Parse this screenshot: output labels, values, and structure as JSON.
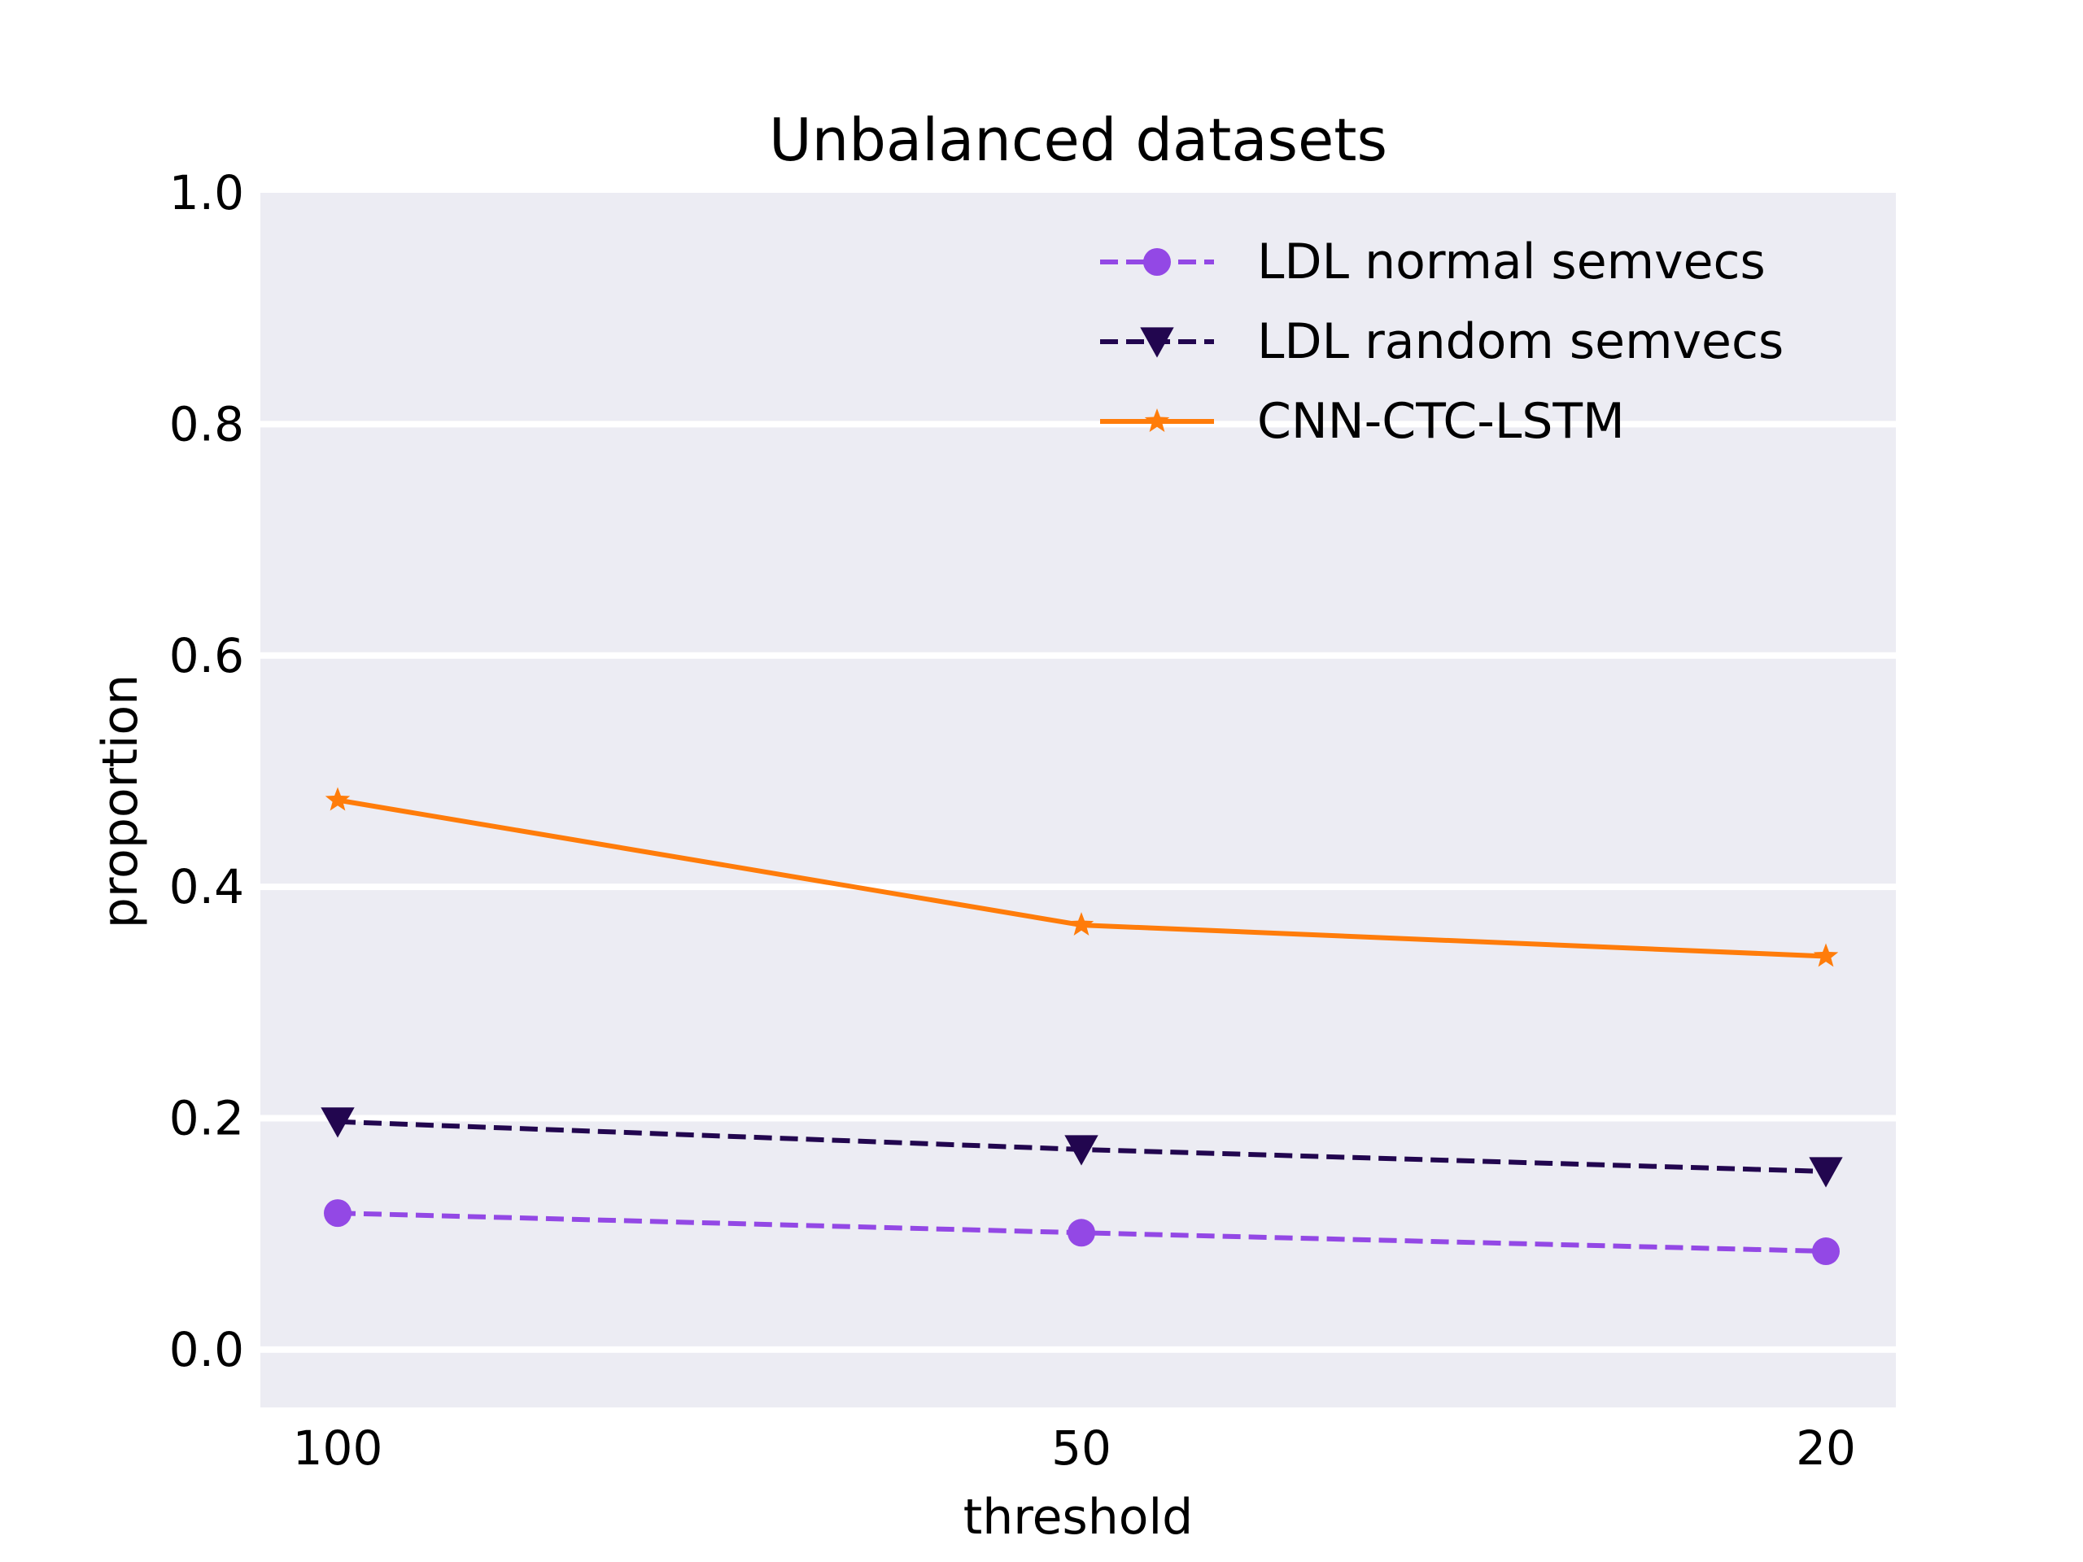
{
  "chart_data": {
    "type": "line",
    "title": "Unbalanced datasets",
    "xlabel": "threshold",
    "ylabel": "proportion",
    "categories": [
      "100",
      "50",
      "20"
    ],
    "ylim": [
      -0.05,
      1.0
    ],
    "yticks": [
      "0.0",
      "0.2",
      "0.4",
      "0.6",
      "0.8",
      "1.0"
    ],
    "ytick_values": [
      0.0,
      0.2,
      0.4,
      0.6,
      0.8,
      1.0
    ],
    "grid": true,
    "legend_position": "top-right",
    "background": "#ececf3",
    "series": [
      {
        "name": "LDL normal semvecs",
        "values": [
          0.118,
          0.101,
          0.085
        ],
        "color": "#9348e5",
        "dash": "dashed",
        "marker": "circle"
      },
      {
        "name": "LDL random semvecs",
        "values": [
          0.197,
          0.173,
          0.154
        ],
        "color": "#22064f",
        "dash": "dashed",
        "marker": "triangle-down"
      },
      {
        "name": "CNN-CTC-LSTM",
        "values": [
          0.475,
          0.367,
          0.34
        ],
        "color": "#ff7c0a",
        "dash": "solid",
        "marker": "star"
      }
    ]
  }
}
